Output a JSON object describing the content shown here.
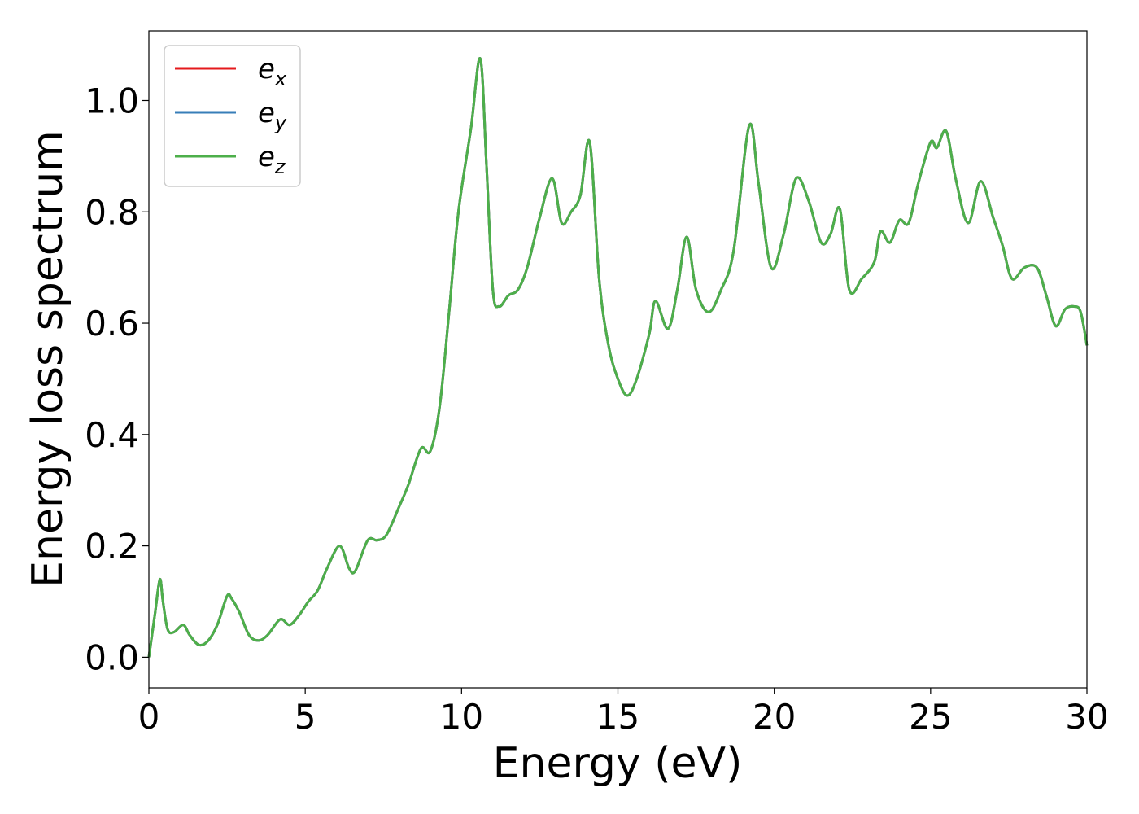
{
  "chart_data": {
    "type": "line",
    "title": "",
    "xlabel": "Energy (eV)",
    "ylabel": "Energy loss spectrum",
    "xlim": [
      0,
      30
    ],
    "ylim": [
      -0.055,
      1.125
    ],
    "xticks": [
      0,
      5,
      10,
      15,
      20,
      25,
      30
    ],
    "xtick_labels": [
      "0",
      "5",
      "10",
      "15",
      "20",
      "25",
      "30"
    ],
    "yticks": [
      0.0,
      0.2,
      0.4,
      0.6,
      0.8,
      1.0
    ],
    "ytick_labels": [
      "0.0",
      "0.2",
      "0.4",
      "0.6",
      "0.8",
      "1.0"
    ],
    "grid": false,
    "legend": {
      "position": "upper-left",
      "entries": [
        {
          "base": "e",
          "sub": "x",
          "color": "#e41a1c"
        },
        {
          "base": "e",
          "sub": "y",
          "color": "#377eb8"
        },
        {
          "base": "e",
          "sub": "z",
          "color": "#4daf4a"
        }
      ]
    },
    "x": [
      0.0,
      0.2,
      0.35,
      0.45,
      0.6,
      0.8,
      1.1,
      1.3,
      1.6,
      1.9,
      2.2,
      2.5,
      2.65,
      2.9,
      3.2,
      3.5,
      3.8,
      4.2,
      4.5,
      4.8,
      5.1,
      5.4,
      5.7,
      6.1,
      6.4,
      6.6,
      7.0,
      7.3,
      7.6,
      8.0,
      8.3,
      8.7,
      9.0,
      9.3,
      9.6,
      9.9,
      10.3,
      10.6,
      10.8,
      11.0,
      11.2,
      11.5,
      11.8,
      12.1,
      12.5,
      12.9,
      13.2,
      13.5,
      13.8,
      14.1,
      14.4,
      14.7,
      15.0,
      15.3,
      15.6,
      16.0,
      16.2,
      16.6,
      16.9,
      17.2,
      17.5,
      17.9,
      18.3,
      18.7,
      19.2,
      19.5,
      19.9,
      20.3,
      20.7,
      21.1,
      21.5,
      21.8,
      22.1,
      22.4,
      22.8,
      23.2,
      23.4,
      23.7,
      24.0,
      24.3,
      24.6,
      25.0,
      25.2,
      25.5,
      25.8,
      26.2,
      26.6,
      27.0,
      27.3,
      27.6,
      28.0,
      28.4,
      28.7,
      29.0,
      29.3,
      29.6,
      29.8,
      30.0
    ],
    "series": [
      {
        "name": "e_x",
        "color": "#e41a1c",
        "values": [
          0.0,
          0.08,
          0.14,
          0.1,
          0.05,
          0.045,
          0.058,
          0.04,
          0.022,
          0.03,
          0.06,
          0.11,
          0.105,
          0.08,
          0.04,
          0.03,
          0.04,
          0.068,
          0.058,
          0.075,
          0.1,
          0.12,
          0.16,
          0.2,
          0.16,
          0.155,
          0.21,
          0.21,
          0.22,
          0.27,
          0.31,
          0.375,
          0.37,
          0.45,
          0.62,
          0.8,
          0.95,
          1.075,
          0.88,
          0.66,
          0.63,
          0.65,
          0.66,
          0.7,
          0.79,
          0.86,
          0.78,
          0.8,
          0.83,
          0.925,
          0.68,
          0.56,
          0.5,
          0.47,
          0.5,
          0.58,
          0.64,
          0.59,
          0.66,
          0.755,
          0.66,
          0.62,
          0.66,
          0.73,
          0.955,
          0.85,
          0.7,
          0.76,
          0.86,
          0.82,
          0.745,
          0.76,
          0.805,
          0.66,
          0.68,
          0.71,
          0.765,
          0.745,
          0.785,
          0.78,
          0.85,
          0.925,
          0.915,
          0.945,
          0.86,
          0.78,
          0.855,
          0.79,
          0.74,
          0.68,
          0.7,
          0.7,
          0.65,
          0.595,
          0.625,
          0.63,
          0.62,
          0.56
        ]
      },
      {
        "name": "e_y",
        "color": "#377eb8",
        "values": [
          0.0,
          0.08,
          0.14,
          0.1,
          0.05,
          0.045,
          0.058,
          0.04,
          0.022,
          0.03,
          0.06,
          0.11,
          0.105,
          0.08,
          0.04,
          0.03,
          0.04,
          0.068,
          0.058,
          0.075,
          0.1,
          0.12,
          0.16,
          0.2,
          0.16,
          0.155,
          0.21,
          0.21,
          0.22,
          0.27,
          0.31,
          0.375,
          0.37,
          0.45,
          0.62,
          0.8,
          0.95,
          1.075,
          0.88,
          0.66,
          0.63,
          0.65,
          0.66,
          0.7,
          0.79,
          0.86,
          0.78,
          0.8,
          0.83,
          0.925,
          0.68,
          0.56,
          0.5,
          0.47,
          0.5,
          0.58,
          0.64,
          0.59,
          0.66,
          0.755,
          0.66,
          0.62,
          0.66,
          0.73,
          0.955,
          0.85,
          0.7,
          0.76,
          0.86,
          0.82,
          0.745,
          0.76,
          0.805,
          0.66,
          0.68,
          0.71,
          0.765,
          0.745,
          0.785,
          0.78,
          0.85,
          0.925,
          0.915,
          0.945,
          0.86,
          0.78,
          0.855,
          0.79,
          0.74,
          0.68,
          0.7,
          0.7,
          0.65,
          0.595,
          0.625,
          0.63,
          0.62,
          0.56
        ]
      },
      {
        "name": "e_z",
        "color": "#4daf4a",
        "values": [
          0.0,
          0.08,
          0.14,
          0.1,
          0.05,
          0.045,
          0.058,
          0.04,
          0.022,
          0.03,
          0.06,
          0.11,
          0.105,
          0.08,
          0.04,
          0.03,
          0.04,
          0.068,
          0.058,
          0.075,
          0.1,
          0.12,
          0.16,
          0.2,
          0.16,
          0.155,
          0.21,
          0.21,
          0.22,
          0.27,
          0.31,
          0.375,
          0.37,
          0.45,
          0.62,
          0.8,
          0.95,
          1.075,
          0.88,
          0.66,
          0.63,
          0.65,
          0.66,
          0.7,
          0.79,
          0.86,
          0.78,
          0.8,
          0.83,
          0.925,
          0.68,
          0.56,
          0.5,
          0.47,
          0.5,
          0.58,
          0.64,
          0.59,
          0.66,
          0.755,
          0.66,
          0.62,
          0.66,
          0.73,
          0.955,
          0.85,
          0.7,
          0.76,
          0.86,
          0.82,
          0.745,
          0.76,
          0.805,
          0.66,
          0.68,
          0.71,
          0.765,
          0.745,
          0.785,
          0.78,
          0.85,
          0.925,
          0.915,
          0.945,
          0.86,
          0.78,
          0.855,
          0.79,
          0.74,
          0.68,
          0.7,
          0.7,
          0.65,
          0.595,
          0.625,
          0.63,
          0.62,
          0.56
        ]
      }
    ]
  }
}
